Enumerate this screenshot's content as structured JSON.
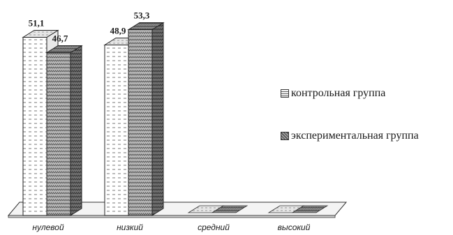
{
  "chart_data": {
    "type": "bar",
    "style": "3d-clustered-column",
    "categories": [
      "нулевой",
      "низкий",
      "средний",
      "высокий"
    ],
    "series": [
      {
        "name": "контрольная группа",
        "values": [
          51.1,
          48.9,
          0,
          0
        ],
        "labels": [
          "51,1",
          "48,9",
          "",
          ""
        ],
        "color": "#ffffff",
        "pattern": "dashed-horizontal"
      },
      {
        "name": "экспериментальная группа",
        "values": [
          46.7,
          53.3,
          0,
          0
        ],
        "labels": [
          "46,7",
          "53,3",
          "",
          ""
        ],
        "color": "#a8a8a8",
        "pattern": "zigzag"
      }
    ],
    "title": "",
    "xlabel": "",
    "ylabel": "",
    "ylim": [
      0,
      60
    ],
    "grid": false,
    "legend": "right"
  }
}
